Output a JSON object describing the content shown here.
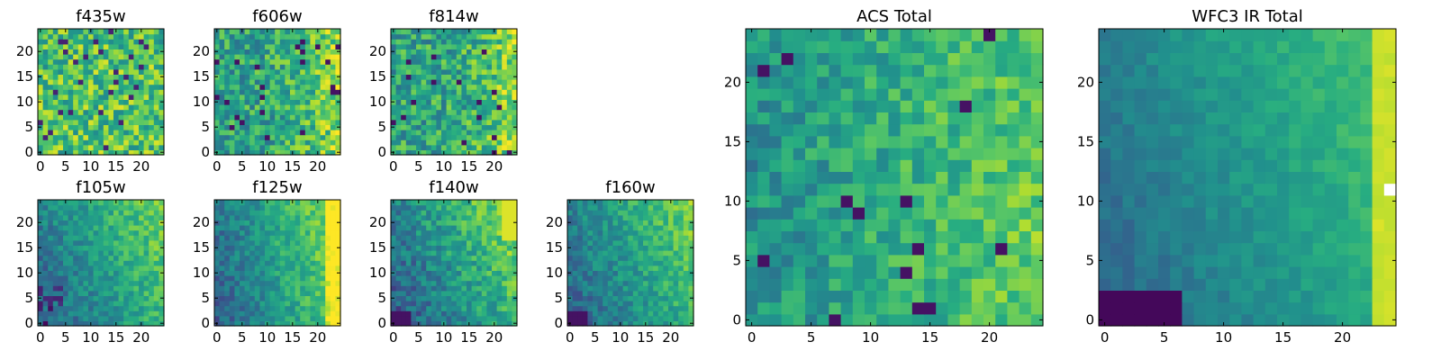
{
  "chart_data": [
    {
      "type": "heatmap",
      "title": "f435w",
      "colormap": "viridis",
      "grid_size": 25,
      "xlim": [
        0,
        24
      ],
      "ylim": [
        0,
        24
      ],
      "x_ticks": [
        0,
        5,
        10,
        15,
        20
      ],
      "y_ticks": [
        0,
        5,
        10,
        15,
        20
      ],
      "value_range": [
        0,
        1
      ],
      "pattern": "uniform random noise, mostly high (green-yellow)"
    },
    {
      "type": "heatmap",
      "title": "f606w",
      "colormap": "viridis",
      "grid_size": 25,
      "xlim": [
        0,
        24
      ],
      "ylim": [
        0,
        24
      ],
      "x_ticks": [
        0,
        5,
        10,
        15,
        20
      ],
      "y_ticks": [
        0,
        5,
        10,
        15,
        20
      ],
      "value_range": [
        0,
        1
      ],
      "pattern": "random noise with brighter right edge"
    },
    {
      "type": "heatmap",
      "title": "f814w",
      "colormap": "viridis",
      "grid_size": 25,
      "xlim": [
        0,
        24
      ],
      "ylim": [
        0,
        24
      ],
      "x_ticks": [
        0,
        5,
        10,
        15,
        20
      ],
      "y_ticks": [
        0,
        5,
        10,
        15,
        20
      ],
      "value_range": [
        0,
        1
      ],
      "pattern": "random noise with brighter right edge"
    },
    {
      "type": "heatmap",
      "title": "f105w",
      "colormap": "viridis",
      "grid_size": 25,
      "xlim": [
        0,
        24
      ],
      "ylim": [
        0,
        24
      ],
      "x_ticks": [
        0,
        5,
        10,
        15,
        20
      ],
      "y_ticks": [
        0,
        5,
        10,
        15,
        20
      ],
      "value_range": [
        0,
        1
      ],
      "pattern": "smooth gradient, dark lower-left, brighter right"
    },
    {
      "type": "heatmap",
      "title": "f125w",
      "colormap": "viridis",
      "grid_size": 25,
      "xlim": [
        0,
        24
      ],
      "ylim": [
        0,
        24
      ],
      "x_ticks": [
        0,
        5,
        10,
        15,
        20
      ],
      "y_ticks": [
        0,
        5,
        10,
        15,
        20
      ],
      "value_range": [
        0,
        1
      ],
      "pattern": "smooth gradient, dark left, yellow right edge"
    },
    {
      "type": "heatmap",
      "title": "f140w",
      "colormap": "viridis",
      "grid_size": 25,
      "xlim": [
        0,
        24
      ],
      "ylim": [
        0,
        24
      ],
      "x_ticks": [
        0,
        5,
        10,
        15,
        20
      ],
      "y_ticks": [
        0,
        5,
        10,
        15,
        20
      ],
      "value_range": [
        0,
        1
      ],
      "pattern": "gradient, dark lower-left, yellow upper-right"
    },
    {
      "type": "heatmap",
      "title": "f160w",
      "colormap": "viridis",
      "grid_size": 25,
      "xlim": [
        0,
        24
      ],
      "ylim": [
        0,
        24
      ],
      "x_ticks": [
        0,
        5,
        10,
        15,
        20
      ],
      "y_ticks": [
        0,
        5,
        10,
        15,
        20
      ],
      "value_range": [
        0,
        1
      ],
      "pattern": "gradient, dark lower-left corner, brighter right"
    },
    {
      "type": "heatmap",
      "title": "ACS Total",
      "colormap": "viridis",
      "grid_size": 25,
      "xlim": [
        0,
        24
      ],
      "ylim": [
        0,
        24
      ],
      "x_ticks": [
        0,
        5,
        10,
        15,
        20
      ],
      "y_ticks": [
        0,
        5,
        10,
        15,
        20
      ],
      "value_range": [
        0,
        1
      ],
      "pattern": "noise with brighter right side, few dark pixels"
    },
    {
      "type": "heatmap",
      "title": "WFC3 IR Total",
      "colormap": "viridis",
      "grid_size": 25,
      "xlim": [
        0,
        24
      ],
      "ylim": [
        0,
        24
      ],
      "x_ticks": [
        0,
        5,
        10,
        15,
        20
      ],
      "y_ticks": [
        0,
        5,
        10,
        15,
        20
      ],
      "value_range": [
        0,
        1
      ],
      "pattern": "smooth gradient, dark bottom-left, yellow right edge, white pixel near (24,11)"
    }
  ]
}
